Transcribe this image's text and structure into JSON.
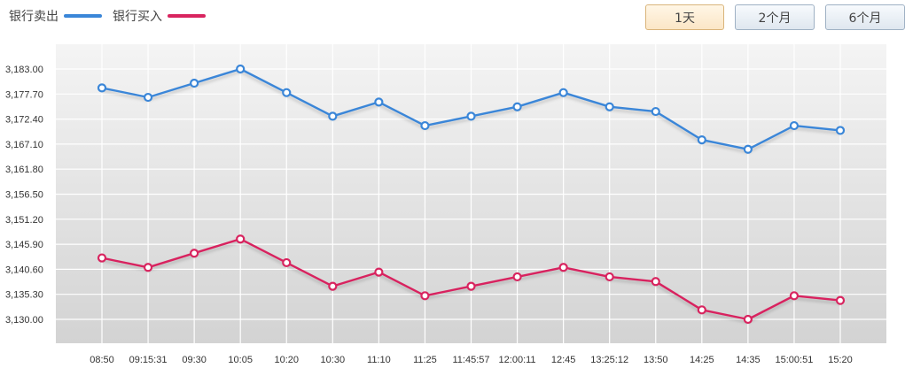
{
  "legend": [
    {
      "label": "银行卖出",
      "color": "#3a86d8"
    },
    {
      "label": "银行买入",
      "color": "#d8245f"
    }
  ],
  "range_buttons": [
    {
      "label": "1天",
      "active": true
    },
    {
      "label": "2个月",
      "active": false
    },
    {
      "label": "6个月",
      "active": false
    }
  ],
  "chart_data": {
    "type": "line",
    "x": [
      "08:50",
      "09:15:31",
      "09:30",
      "10:05",
      "10:20",
      "10:30",
      "11:10",
      "11:25",
      "11:45:57",
      "12:00:11",
      "12:45",
      "13:25:12",
      "13:50",
      "14:25",
      "14:35",
      "15:00:51",
      "15:20"
    ],
    "y_ticks": [
      "3,183.00",
      "3,177.70",
      "3,172.40",
      "3,167.10",
      "3,161.80",
      "3,156.50",
      "3,151.20",
      "3,145.90",
      "3,140.60",
      "3,135.30",
      "3,130.00"
    ],
    "ylim": [
      3130.0,
      3183.0
    ],
    "grid": true,
    "series": [
      {
        "name": "银行卖出",
        "color": "#3a86d8",
        "values": [
          3179.0,
          3177.0,
          3180.0,
          3183.0,
          3178.0,
          3173.0,
          3176.0,
          3171.0,
          3173.0,
          3175.0,
          3178.0,
          3175.0,
          3174.0,
          3168.0,
          3166.0,
          3171.0,
          3170.0
        ]
      },
      {
        "name": "银行买入",
        "color": "#d8245f",
        "values": [
          3143.0,
          3141.0,
          3144.0,
          3147.0,
          3142.0,
          3137.0,
          3140.0,
          3135.0,
          3137.0,
          3139.0,
          3141.0,
          3139.0,
          3138.0,
          3132.0,
          3130.0,
          3135.0,
          3134.0
        ]
      }
    ]
  }
}
